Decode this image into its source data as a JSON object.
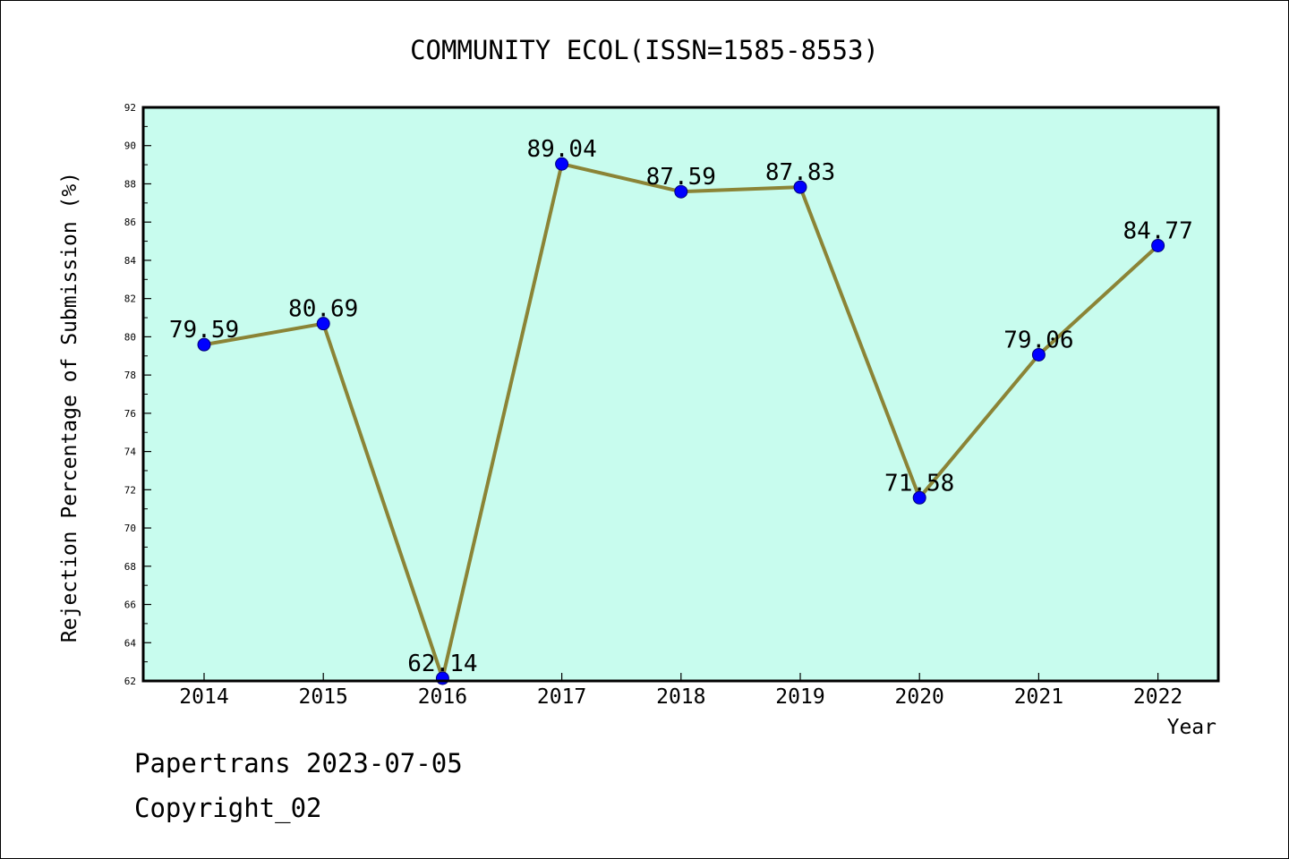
{
  "chart_data": {
    "type": "line",
    "title": "COMMUNITY ECOL(ISSN=1585-8553)",
    "xlabel": "Year",
    "ylabel": "Rejection Percentage of Submission (%)",
    "categories": [
      "2014",
      "2015",
      "2016",
      "2017",
      "2018",
      "2019",
      "2020",
      "2021",
      "2022"
    ],
    "series": [
      {
        "values": [
          79.59,
          80.69,
          62.14,
          89.04,
          87.59,
          87.83,
          71.58,
          79.06,
          84.77
        ],
        "labels": [
          "79.59",
          "80.69",
          "62.14",
          "89.04",
          "87.59",
          "87.83",
          "71.58",
          "79.06",
          "84.77"
        ]
      }
    ],
    "ylim": [
      62,
      92
    ],
    "yticks": [
      "62",
      "64",
      "66",
      "68",
      "70",
      "72",
      "74",
      "76",
      "78",
      "80",
      "82",
      "84",
      "86",
      "88",
      "90",
      "92"
    ],
    "grid": false,
    "colors": {
      "plot_background": "#c8fcee",
      "line": "#8b8436",
      "marker": "#0000ff"
    }
  },
  "footer": {
    "line1": "Papertrans 2023-07-05",
    "line2": "Copyright_02"
  }
}
